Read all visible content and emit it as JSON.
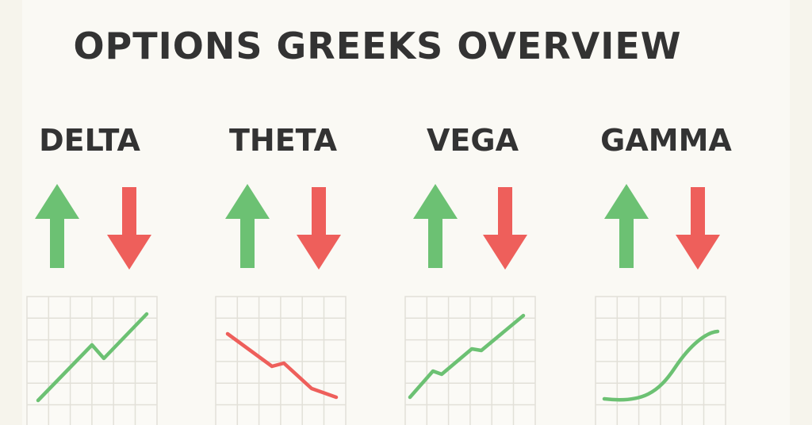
{
  "title": "OPTIONS GREEKS OVERVIEW",
  "cards": [
    {
      "label": "DELTA"
    },
    {
      "label": "THETA"
    },
    {
      "label": "VEGA"
    },
    {
      "label": "GAMMA"
    }
  ]
}
